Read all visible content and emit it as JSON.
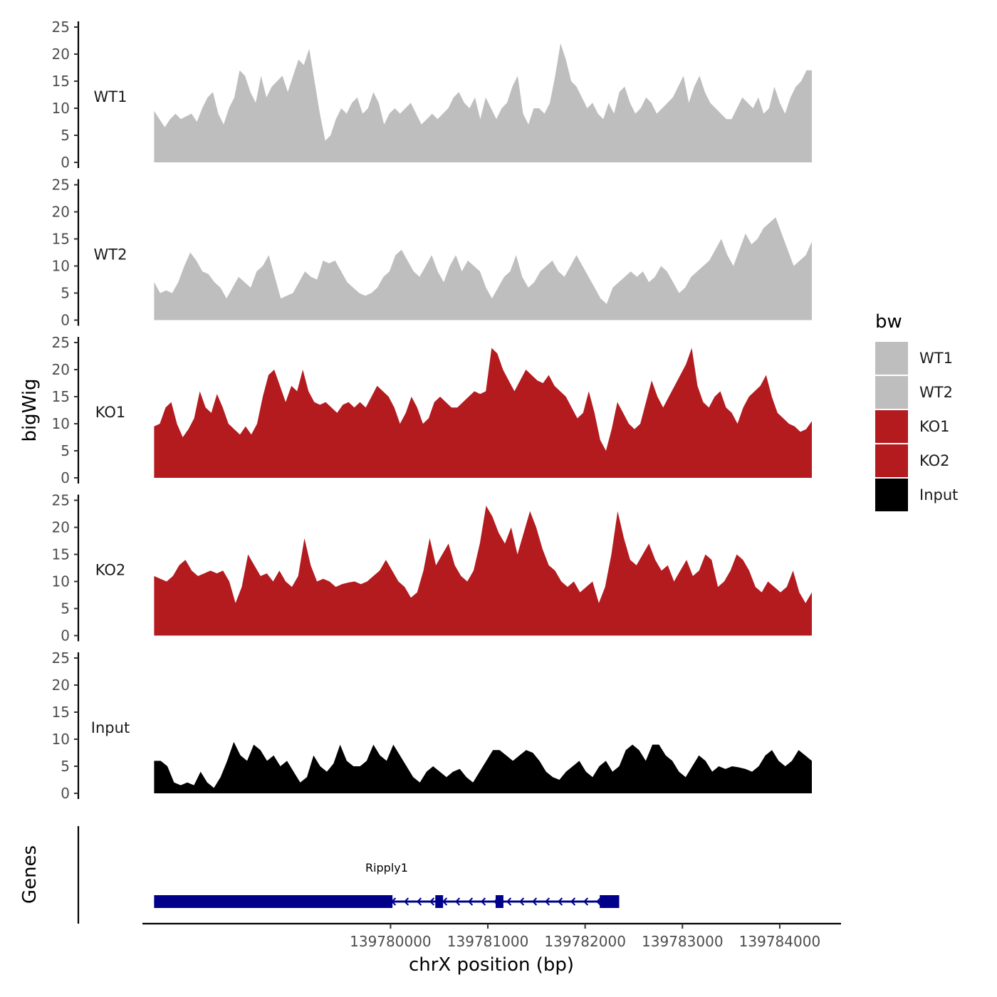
{
  "chart_data": {
    "type": "area",
    "ylabel": "bigWig",
    "xlabel": "chrX position (bp)",
    "genes_label": "Genes",
    "xlim": [
      139777450,
      139784630
    ],
    "data_range": [
      139777570,
      139784330
    ],
    "ylim": [
      0,
      25
    ],
    "y_ticks": [
      0,
      5,
      10,
      15,
      20,
      25
    ],
    "x_ticks": [
      139780000,
      139781000,
      139782000,
      139783000,
      139784000
    ],
    "legend": {
      "title": "bw",
      "entries": [
        {
          "label": "WT1",
          "color": "#bebebe"
        },
        {
          "label": "WT2",
          "color": "#bebebe"
        },
        {
          "label": "KO1",
          "color": "#b31b1f"
        },
        {
          "label": "KO2",
          "color": "#b31b1f"
        },
        {
          "label": "Input",
          "color": "#000000"
        }
      ]
    },
    "series": [
      {
        "name": "WT1",
        "color": "#bebebe",
        "values": [
          9.5,
          8,
          6.5,
          8,
          9,
          8,
          8.5,
          9,
          7.5,
          10,
          12,
          13,
          9,
          7,
          10,
          12,
          17,
          16,
          13,
          11,
          16,
          12,
          14,
          15,
          16,
          13,
          16,
          19,
          18,
          21,
          15,
          9,
          4,
          5,
          8,
          10,
          9,
          11,
          12,
          9,
          10,
          13,
          11,
          7,
          9,
          10,
          9,
          10,
          11,
          9,
          7,
          8,
          9,
          8,
          9,
          10,
          12,
          13,
          11,
          10,
          12,
          8,
          12,
          10,
          8,
          10,
          11,
          14,
          16,
          9,
          7,
          10,
          10,
          9,
          11,
          16,
          22,
          19,
          15,
          14,
          12,
          10,
          11,
          9,
          8,
          11,
          9,
          13,
          14,
          11,
          9,
          10,
          12,
          11,
          9,
          10,
          11,
          12,
          14,
          16,
          11,
          14,
          16,
          13,
          11,
          10,
          9,
          8,
          8,
          10,
          12,
          11,
          10,
          12,
          9,
          10,
          14,
          11,
          9,
          12,
          14,
          15,
          17,
          17
        ]
      },
      {
        "name": "WT2",
        "color": "#bebebe",
        "values": [
          7,
          5,
          5.5,
          5,
          7,
          10,
          12.5,
          11,
          9,
          8.5,
          7,
          6,
          4,
          6,
          8,
          7,
          6,
          9,
          10,
          12,
          8,
          4,
          4.5,
          5,
          7,
          9,
          8,
          7.5,
          11,
          10.5,
          11,
          9,
          7,
          6,
          5,
          4.5,
          5,
          6,
          8,
          9,
          12,
          13,
          11,
          9,
          8,
          10,
          12,
          9,
          7,
          10,
          12,
          9,
          11,
          10,
          9,
          6,
          4,
          6,
          8,
          9,
          12,
          8,
          6,
          7,
          9,
          10,
          11,
          9,
          8,
          10,
          12,
          10,
          8,
          6,
          4,
          3,
          6,
          7,
          8,
          9,
          8,
          9,
          7,
          8,
          10,
          9,
          7,
          5,
          6,
          8,
          9,
          10,
          11,
          13,
          15,
          12,
          10,
          13,
          16,
          14,
          15,
          17,
          18,
          19,
          16,
          13,
          10,
          11,
          12,
          14.5
        ]
      },
      {
        "name": "KO1",
        "color": "#b31b1f",
        "values": [
          9.5,
          10,
          13,
          14,
          10,
          7.5,
          9,
          11,
          16,
          13,
          12,
          15.5,
          13,
          10,
          9,
          8,
          9.5,
          8,
          10,
          15,
          19,
          20,
          17,
          14,
          17,
          16,
          20,
          16,
          14,
          13.5,
          14,
          13,
          12,
          13.5,
          14,
          13,
          14,
          13,
          15,
          17,
          16,
          15,
          13,
          10,
          12,
          15,
          13,
          10,
          11,
          14,
          15,
          14,
          13,
          13,
          14,
          15,
          16,
          15.5,
          16,
          24,
          23,
          20,
          18,
          16,
          18,
          20,
          19,
          18,
          17.5,
          19,
          17,
          16,
          15,
          13,
          11,
          12,
          16,
          12,
          7,
          5,
          9,
          14,
          12,
          10,
          9,
          10,
          14,
          18,
          15,
          13,
          15,
          17,
          19,
          21,
          24,
          17,
          14,
          13,
          15,
          16,
          13,
          12,
          10,
          13,
          15,
          16,
          17,
          19,
          15,
          12,
          11,
          10,
          9.5,
          8.5,
          9,
          10.5
        ]
      },
      {
        "name": "KO2",
        "color": "#b31b1f",
        "values": [
          11,
          10.5,
          10,
          11,
          13,
          14,
          12,
          11,
          11.5,
          12,
          11.5,
          12,
          10,
          6,
          9,
          15,
          13,
          11,
          11.5,
          10,
          12,
          10,
          9,
          11,
          18,
          13,
          10,
          10.5,
          10,
          9,
          9.5,
          9.8,
          10,
          9.5,
          10,
          11,
          12,
          14,
          12,
          10,
          9,
          7,
          8,
          12,
          18,
          13,
          15,
          17,
          13,
          11,
          10,
          12,
          17,
          24,
          22,
          19,
          17,
          20,
          15,
          19,
          23,
          20,
          16,
          13,
          12,
          10,
          9,
          10,
          8,
          9,
          10,
          6,
          9,
          15,
          23,
          18,
          14,
          13,
          15,
          17,
          14,
          12,
          13,
          10,
          12,
          14,
          11,
          12,
          15,
          14,
          9,
          10,
          12,
          15,
          14,
          12,
          9,
          8,
          10,
          9,
          8,
          9,
          12,
          8,
          6,
          8
        ]
      },
      {
        "name": "Input",
        "color": "#000000",
        "values": [
          6,
          6,
          5,
          2,
          1.5,
          2,
          1.5,
          4,
          2,
          1,
          3,
          6,
          9.5,
          7,
          6,
          9,
          8,
          6,
          7,
          5,
          6,
          4,
          2,
          3,
          7,
          5,
          4,
          5.5,
          9,
          6,
          5,
          5,
          6,
          9,
          7,
          6,
          9,
          7,
          5,
          3,
          2,
          4,
          5,
          4,
          3,
          4,
          4.5,
          3,
          2,
          4,
          6,
          8,
          8,
          7,
          6,
          7,
          8,
          7.5,
          6,
          4,
          3,
          2.5,
          4,
          5,
          6,
          4,
          3,
          5,
          6,
          4,
          5,
          8,
          9,
          8,
          6,
          9,
          9,
          7,
          6,
          4,
          3,
          5,
          7,
          6,
          4,
          5,
          4.5,
          5,
          4.8,
          4.5,
          4,
          5,
          7,
          8,
          6,
          5,
          6,
          8,
          7,
          6
        ]
      }
    ],
    "gene": {
      "name": "Ripply1",
      "start": 139777570,
      "end": 139782350,
      "strand": "-",
      "exons": [
        [
          139777570,
          139780020
        ],
        [
          139780460,
          139780540
        ],
        [
          139781080,
          139781160
        ],
        [
          139782150,
          139782350
        ]
      ]
    }
  }
}
